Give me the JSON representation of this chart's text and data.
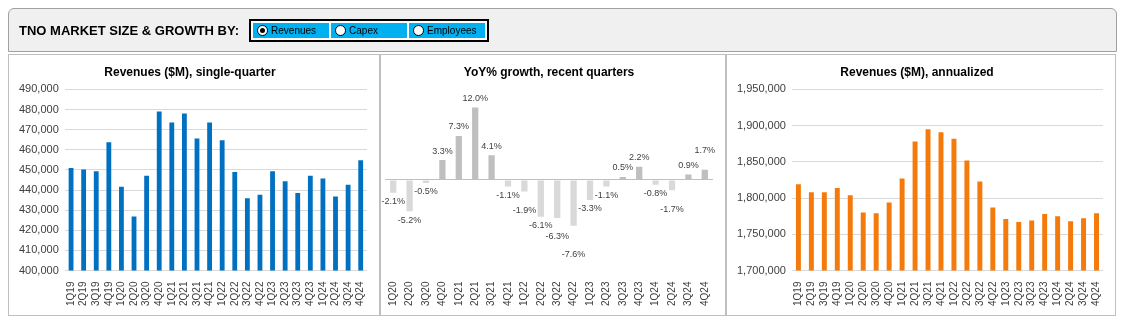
{
  "chart_data": [
    {
      "type": "other",
      "title": "TNO MARKET SIZE & GROWTH BY:",
      "annotations": [
        "Revenues",
        "Capex",
        "Employees"
      ]
    },
    {
      "type": "bar",
      "title": "Revenues ($M), single-quarter",
      "categories": [
        "1Q19",
        "2Q19",
        "3Q19",
        "4Q19",
        "1Q20",
        "2Q20",
        "3Q20",
        "4Q20",
        "1Q21",
        "2Q21",
        "3Q21",
        "4Q21",
        "1Q22",
        "2Q22",
        "3Q22",
        "4Q22",
        "1Q23",
        "2Q23",
        "3Q23",
        "4Q23",
        "1Q24",
        "2Q24",
        "3Q24",
        "4Q24"
      ],
      "values": [
        451000,
        450200,
        449300,
        463800,
        441600,
        426900,
        447100,
        479000,
        473600,
        478000,
        465600,
        473600,
        464700,
        448900,
        435900,
        437600,
        449300,
        444400,
        438500,
        447100,
        445700,
        436800,
        442600,
        454800
      ],
      "color": "#0070c0",
      "ylim": [
        400000,
        490000
      ],
      "yticks": [
        {
          "value": 400000,
          "label": "400,000"
        },
        {
          "value": 410000,
          "label": "410,000"
        },
        {
          "value": 420000,
          "label": "420,000"
        },
        {
          "value": 430000,
          "label": "430,000"
        },
        {
          "value": 440000,
          "label": "440,000"
        },
        {
          "value": 450000,
          "label": "450,000"
        },
        {
          "value": 460000,
          "label": "460,000"
        },
        {
          "value": 470000,
          "label": "470,000"
        },
        {
          "value": 480000,
          "label": "480,000"
        },
        {
          "value": 490000,
          "label": "490,000"
        }
      ],
      "grid": "y",
      "legend": false
    },
    {
      "type": "bar",
      "title": "YoY% growth, recent quarters",
      "categories": [
        "1Q20",
        "2Q20",
        "3Q20",
        "4Q20",
        "1Q21",
        "2Q21",
        "3Q21",
        "4Q21",
        "1Q22",
        "2Q22",
        "3Q22",
        "4Q22",
        "1Q23",
        "2Q23",
        "3Q23",
        "4Q23",
        "1Q24",
        "2Q24",
        "3Q24",
        "4Q24"
      ],
      "values": [
        -2.1,
        -5.2,
        -0.5,
        3.3,
        7.3,
        12.0,
        4.1,
        -1.1,
        -1.9,
        -6.1,
        -6.3,
        -7.6,
        -3.3,
        -1.1,
        0.5,
        2.2,
        -0.8,
        -1.7,
        0.9,
        1.7
      ],
      "value_labels": [
        "-2.1%",
        "-5.2%",
        "-0.5%",
        "3.3%",
        "7.3%",
        "12.0%",
        "4.1%",
        "-1.1%",
        "-1.9%",
        "-6.1%",
        "-6.3%",
        "-7.6%",
        "-3.3%",
        "-1.1%",
        "0.5%",
        "2.2%",
        "-0.8%",
        "-1.7%",
        "0.9%",
        "1.7%"
      ],
      "colors": [
        "#d9d9d9",
        "#d9d9d9",
        "#d9d9d9",
        "#bfbfbf",
        "#bfbfbf",
        "#bfbfbf",
        "#bfbfbf",
        "#d9d9d9",
        "#d9d9d9",
        "#d9d9d9",
        "#d9d9d9",
        "#d9d9d9",
        "#d9d9d9",
        "#d9d9d9",
        "#bfbfbf",
        "#bfbfbf",
        "#d9d9d9",
        "#d9d9d9",
        "#bfbfbf",
        "#bfbfbf"
      ],
      "tick_labels": "x",
      "legend": false
    },
    {
      "type": "bar",
      "title": "Revenues ($M), annualized",
      "categories": [
        "1Q19",
        "2Q19",
        "3Q19",
        "4Q19",
        "1Q20",
        "2Q20",
        "3Q20",
        "4Q20",
        "1Q21",
        "2Q21",
        "3Q21",
        "4Q21",
        "1Q22",
        "2Q22",
        "3Q22",
        "4Q22",
        "1Q23",
        "2Q23",
        "3Q23",
        "4Q23",
        "1Q24",
        "2Q24",
        "3Q24",
        "4Q24"
      ],
      "values": [
        1819000,
        1808000,
        1808000,
        1814000,
        1804000,
        1780000,
        1779000,
        1794000,
        1827000,
        1878000,
        1895000,
        1891000,
        1882000,
        1852000,
        1823000,
        1787000,
        1771000,
        1767000,
        1769000,
        1778000,
        1775000,
        1768000,
        1772000,
        1779000
      ],
      "color": "#f47b0b",
      "ylim": [
        1700000,
        1950000
      ],
      "yticks": [
        {
          "value": 1700000,
          "label": "1,700,000"
        },
        {
          "value": 1750000,
          "label": "1,750,000"
        },
        {
          "value": 1800000,
          "label": "1,800,000"
        },
        {
          "value": 1850000,
          "label": "1,850,000"
        },
        {
          "value": 1900000,
          "label": "1,900,000"
        },
        {
          "value": 1950000,
          "label": "1,950,000"
        }
      ],
      "grid": "y",
      "legend": false
    }
  ]
}
